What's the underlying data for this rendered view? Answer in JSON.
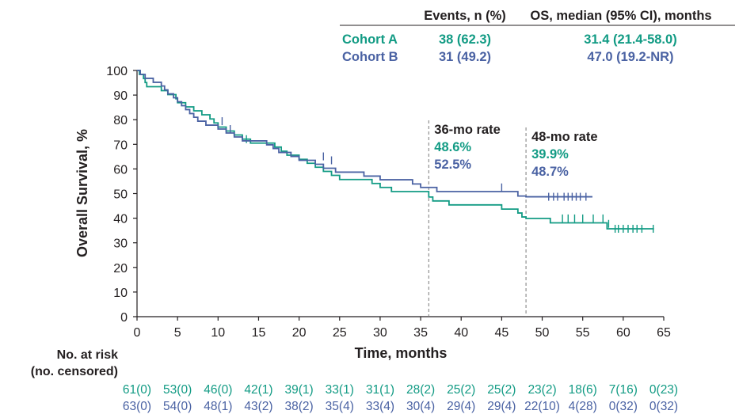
{
  "colors": {
    "cohort_a": "#129b84",
    "cohort_b": "#4a62a3",
    "axis": "#231f20",
    "ref_line": "#7a7a7a"
  },
  "legend_table": {
    "col1": "Events, n (%)",
    "col2": "OS, median (95% CI), months",
    "rows": [
      {
        "name": "Cohort A",
        "events": "38 (62.3)",
        "median": "31.4 (21.4-58.0)"
      },
      {
        "name": "Cohort B",
        "events": "31 (49.2)",
        "median": "47.0 (19.2-NR)"
      }
    ]
  },
  "annotations": [
    {
      "label": "36-mo rate",
      "x": 36,
      "a": "48.6%",
      "b": "52.5%"
    },
    {
      "label": "48-mo rate",
      "x": 48,
      "a": "39.9%",
      "b": "48.7%"
    }
  ],
  "risk_table": {
    "label1": "No. at risk",
    "label2": "(no. censored)",
    "times": [
      0,
      5,
      10,
      15,
      20,
      25,
      30,
      35,
      40,
      45,
      50,
      55,
      60,
      65
    ],
    "a": [
      "61(0)",
      "53(0)",
      "46(0)",
      "42(1)",
      "39(1)",
      "33(1)",
      "31(1)",
      "28(2)",
      "25(2)",
      "25(2)",
      "23(2)",
      "18(6)",
      "7(16)",
      "0(23)"
    ],
    "b": [
      "63(0)",
      "54(0)",
      "48(1)",
      "43(2)",
      "38(2)",
      "35(4)",
      "33(4)",
      "30(4)",
      "29(4)",
      "29(4)",
      "22(10)",
      "4(28)",
      "0(32)",
      "0(32)"
    ]
  },
  "chart_data": {
    "type": "line",
    "xlabel": "Time, months",
    "ylabel": "Overall Survival, %",
    "xlim": [
      0,
      65
    ],
    "ylim": [
      0,
      100
    ],
    "xticks": [
      0,
      5,
      10,
      15,
      20,
      25,
      30,
      35,
      40,
      45,
      50,
      55,
      60,
      65
    ],
    "yticks": [
      0,
      10,
      20,
      30,
      40,
      50,
      60,
      70,
      80,
      90,
      100
    ],
    "series": [
      {
        "name": "Cohort A",
        "color": "#129b84",
        "steps": [
          [
            0,
            100
          ],
          [
            0.3,
            98.4
          ],
          [
            0.8,
            96.7
          ],
          [
            1,
            95.1
          ],
          [
            1.2,
            93.4
          ],
          [
            3,
            91.8
          ],
          [
            3.8,
            90.2
          ],
          [
            4.8,
            88.5
          ],
          [
            5,
            86.9
          ],
          [
            6,
            85.2
          ],
          [
            7,
            83.6
          ],
          [
            8,
            82.0
          ],
          [
            9,
            80.3
          ],
          [
            9.5,
            78.7
          ],
          [
            10,
            77.0
          ],
          [
            11,
            75.4
          ],
          [
            12,
            73.8
          ],
          [
            13,
            72.1
          ],
          [
            14,
            70.5
          ],
          [
            17,
            68.9
          ],
          [
            17.8,
            67.2
          ],
          [
            18.5,
            65.6
          ],
          [
            20,
            63.9
          ],
          [
            21,
            62.3
          ],
          [
            22,
            60.7
          ],
          [
            23,
            59.0
          ],
          [
            24,
            57.4
          ],
          [
            25,
            55.7
          ],
          [
            29,
            54.1
          ],
          [
            30,
            52.5
          ],
          [
            31.4,
            50.8
          ],
          [
            36,
            48.6
          ],
          [
            36.5,
            47.0
          ],
          [
            38.5,
            45.4
          ],
          [
            45,
            43.7
          ],
          [
            47,
            42.1
          ],
          [
            47.5,
            40.5
          ],
          [
            48,
            39.9
          ],
          [
            51,
            38.1
          ],
          [
            58,
            35.7
          ],
          [
            58.2,
            35.7
          ]
        ],
        "end": 63.8,
        "censor": [
          [
            13.5,
            72.1
          ],
          [
            52.5,
            39.9
          ],
          [
            53.2,
            39.9
          ],
          [
            54,
            39.9
          ],
          [
            55,
            39.9
          ],
          [
            56.3,
            39.9
          ],
          [
            57.5,
            39.9
          ],
          [
            58.2,
            37.7
          ],
          [
            59,
            35.7
          ],
          [
            59.4,
            35.7
          ],
          [
            60,
            35.7
          ],
          [
            60.6,
            35.7
          ],
          [
            61.2,
            35.7
          ],
          [
            61.7,
            35.7
          ],
          [
            62.3,
            35.7
          ],
          [
            63.7,
            35.7
          ]
        ]
      },
      {
        "name": "Cohort B",
        "color": "#4a62a3",
        "steps": [
          [
            0,
            100
          ],
          [
            0.4,
            98.4
          ],
          [
            1,
            96.8
          ],
          [
            2,
            95.2
          ],
          [
            3,
            93.7
          ],
          [
            3.4,
            92.1
          ],
          [
            3.8,
            90.5
          ],
          [
            4.5,
            88.9
          ],
          [
            5,
            87.3
          ],
          [
            5.5,
            85.7
          ],
          [
            6,
            84.1
          ],
          [
            6.5,
            82.5
          ],
          [
            7,
            81.0
          ],
          [
            7.5,
            79.4
          ],
          [
            8.5,
            77.8
          ],
          [
            10,
            76.2
          ],
          [
            11,
            74.6
          ],
          [
            12,
            73.0
          ],
          [
            13,
            71.4
          ],
          [
            16,
            69.8
          ],
          [
            16.8,
            68.3
          ],
          [
            17.5,
            66.7
          ],
          [
            19,
            65.1
          ],
          [
            20,
            63.5
          ],
          [
            22,
            61.9
          ],
          [
            23,
            60.3
          ],
          [
            24.5,
            58.7
          ],
          [
            28,
            57.1
          ],
          [
            30,
            55.6
          ],
          [
            34,
            53.9
          ],
          [
            35,
            52.5
          ],
          [
            37,
            50.8
          ],
          [
            47,
            49.0
          ],
          [
            48,
            48.7
          ]
        ],
        "end": 56.2,
        "censor": [
          [
            10.5,
            79.4
          ],
          [
            11.5,
            76.2
          ],
          [
            23,
            65.1
          ],
          [
            24,
            63.5
          ],
          [
            45,
            52.5
          ],
          [
            50.8,
            48.7
          ],
          [
            51.4,
            48.7
          ],
          [
            51.9,
            48.7
          ],
          [
            52.7,
            48.7
          ],
          [
            53.2,
            48.7
          ],
          [
            53.7,
            48.7
          ],
          [
            54.2,
            48.7
          ],
          [
            54.7,
            48.7
          ],
          [
            55.4,
            48.7
          ]
        ]
      }
    ]
  }
}
